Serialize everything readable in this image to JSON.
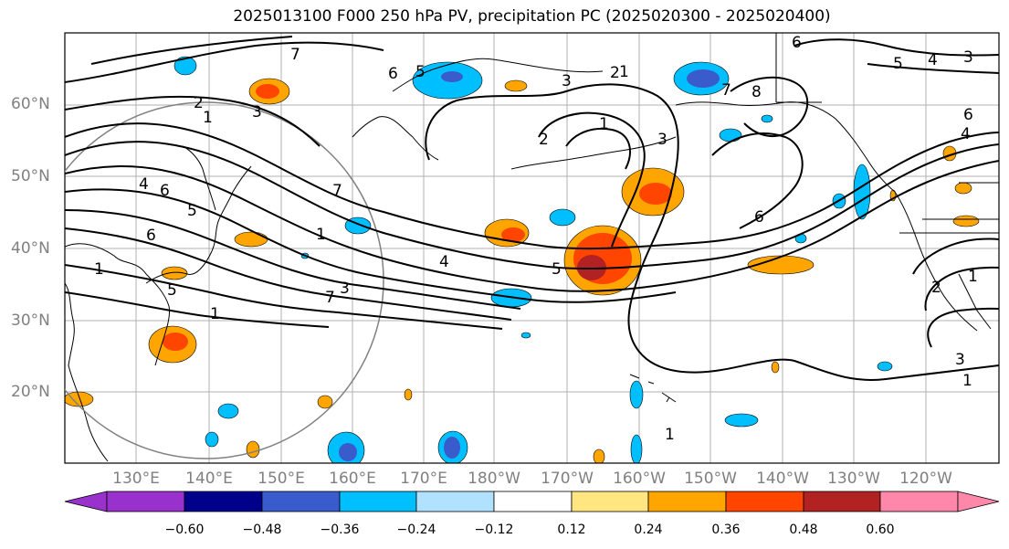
{
  "title": "2025013100 F000 250 hPa PV, precipitation PC (2025020300 - 2025020400)",
  "map": {
    "latitude_labels": [
      "60°N",
      "50°N",
      "40°N",
      "30°N",
      "20°N"
    ],
    "longitude_labels": [
      "130°E",
      "140°E",
      "150°E",
      "160°E",
      "170°E",
      "180°W",
      "170°W",
      "160°W",
      "150°W",
      "140°W",
      "130°W",
      "120°W"
    ],
    "pv_contour_labels": [
      "7",
      "6",
      "5",
      "2",
      "1",
      "3",
      "6",
      "5",
      "4",
      "7",
      "1",
      "6",
      "1",
      "5",
      "7",
      "3",
      "1",
      "2",
      "1",
      "1",
      "2",
      "3",
      "5",
      "4",
      "3",
      "7",
      "8",
      "6",
      "1",
      "6",
      "5",
      "4",
      "3",
      "6",
      "4",
      "2",
      "3",
      "1",
      "1"
    ]
  },
  "colorbar": {
    "labels": [
      "−0.60",
      "−0.48",
      "−0.36",
      "−0.24",
      "−0.12",
      "0.12",
      "0.24",
      "0.36",
      "0.48",
      "0.60"
    ],
    "colors": [
      "#9932CC",
      "#00008B",
      "#3A5BCC",
      "#00BFFF",
      "#B0E2FF",
      "#FFFFFF",
      "#FFE680",
      "#FFA500",
      "#FF4500",
      "#B22222",
      "#FF88AA"
    ]
  }
}
